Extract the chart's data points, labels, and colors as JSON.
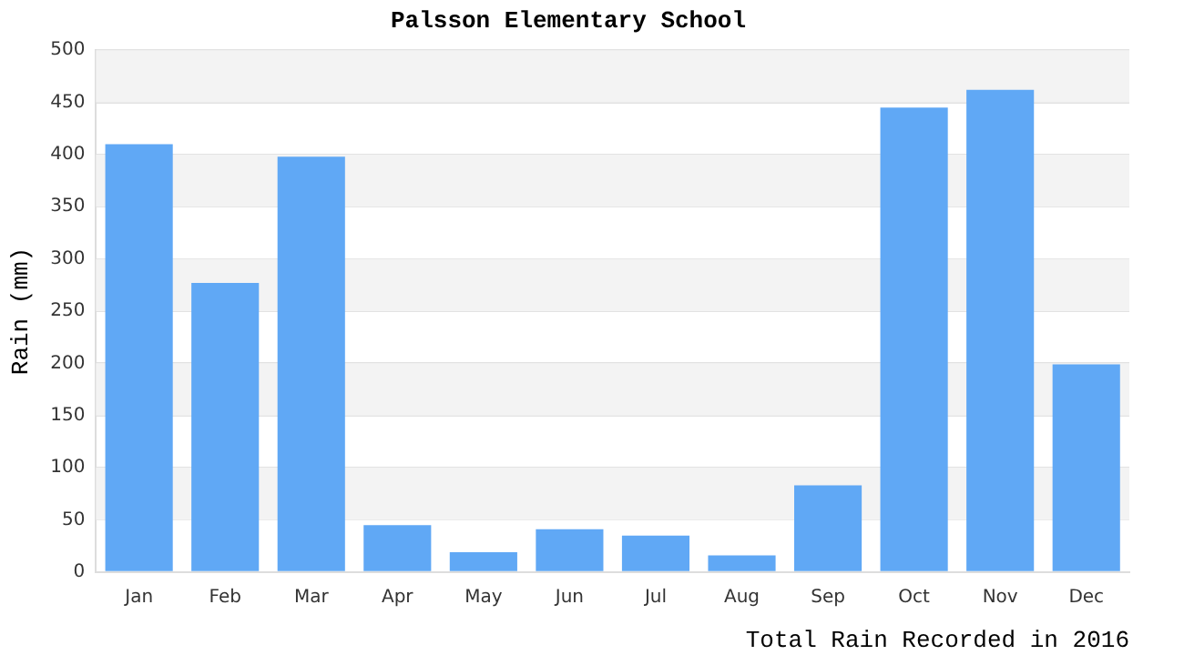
{
  "chart_data": {
    "type": "bar",
    "title": "Palsson Elementary School",
    "xlabel": "Total Rain Recorded in 2016",
    "ylabel": "Rain (mm)",
    "categories": [
      "Jan",
      "Feb",
      "Mar",
      "Apr",
      "May",
      "Jun",
      "Jul",
      "Aug",
      "Sep",
      "Oct",
      "Nov",
      "Dec"
    ],
    "values": [
      410,
      277,
      398,
      45,
      19,
      41,
      35,
      16,
      83,
      445,
      462,
      199
    ],
    "color": "#60a8f5",
    "ylim": [
      0,
      500
    ],
    "yticks": [
      0,
      50,
      100,
      150,
      200,
      250,
      300,
      350,
      400,
      450,
      500
    ],
    "grid": "y"
  }
}
